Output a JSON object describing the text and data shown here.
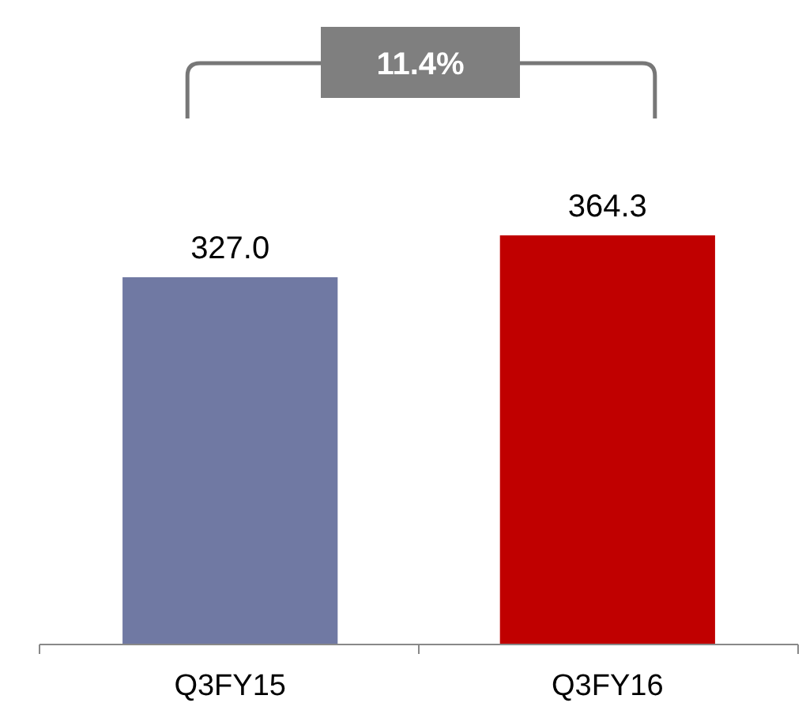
{
  "chart_data": {
    "type": "bar",
    "categories": [
      "Q3FY15",
      "Q3FY16"
    ],
    "values": [
      327.0,
      364.3
    ],
    "value_labels": [
      "327.0",
      "364.3"
    ],
    "colors": [
      "#7079a3",
      "#c00000"
    ],
    "tick_labels": "x",
    "annotations": [
      "11.4%"
    ]
  }
}
